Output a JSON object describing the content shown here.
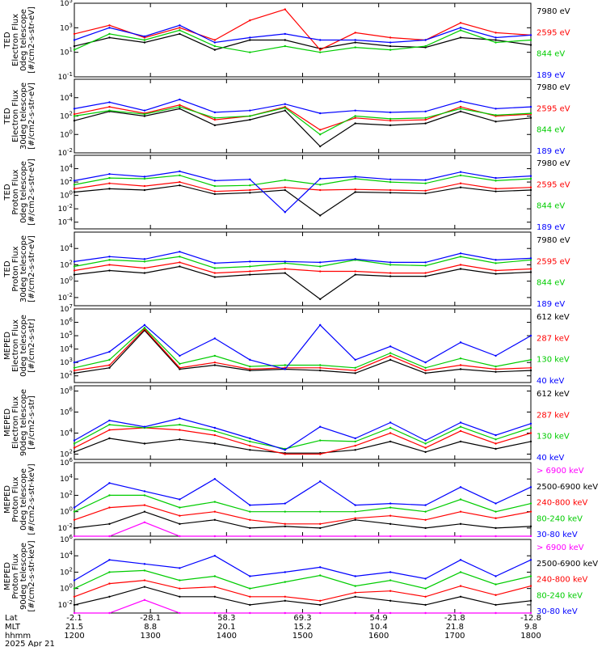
{
  "chart_data": {
    "type": "line",
    "date": "2025 Apr 21",
    "xaxis": {
      "row_labels": [
        "Lat",
        "MLT",
        "hhmm"
      ],
      "times": [
        "1200",
        "1300",
        "1400",
        "1500",
        "1600",
        "1700",
        "1800"
      ],
      "lat": [
        "-2.1",
        "-28.1",
        "58.3",
        "69.3",
        "54.9",
        "-21.8",
        "-12.8"
      ],
      "mlt": [
        "21.5",
        "8.8",
        "20.1",
        "15.2",
        "10.4",
        "21.8",
        "9.8"
      ]
    },
    "panels": [
      {
        "ylabel": [
          "TED",
          "Electron Flux",
          "0deg telescope",
          "[#/cm2-s-str-eV]"
        ],
        "yticks": [
          "10^-1",
          "10^1",
          "10^3",
          "10^5"
        ],
        "ylim_log10": [
          -1,
          5
        ],
        "series": [
          {
            "name": "7980 eV",
            "color": "#000000",
            "values": [
              1.5,
              2.2,
              1.8,
              2.5,
              1.2,
              2.0,
              2.0,
              1.3,
              1.8,
              1.5,
              1.4,
              2.2,
              2.0,
              1.6
            ]
          },
          {
            "name": "2595 eV",
            "color": "#ff0000",
            "values": [
              2.5,
              3.2,
              2.2,
              3.0,
              2.0,
              3.6,
              4.5,
              1.2,
              2.6,
              2.2,
              2.0,
              3.4,
              2.6,
              2.4
            ]
          },
          {
            "name": "844 eV",
            "color": "#00cc00",
            "values": [
              1.2,
              2.5,
              2.0,
              2.8,
              1.5,
              1.0,
              1.5,
              1.0,
              1.4,
              1.2,
              1.5,
              2.8,
              1.8,
              2.0
            ]
          },
          {
            "name": "189 eV",
            "color": "#0000ff",
            "values": [
              2.0,
              3.0,
              2.3,
              3.2,
              1.8,
              2.2,
              2.5,
              2.0,
              2.0,
              1.8,
              2.0,
              3.0,
              2.2,
              2.4
            ]
          }
        ]
      },
      {
        "ylabel": [
          "TED",
          "Electron Flux",
          "30deg telescope",
          "[#/cm2-s-str-eV]"
        ],
        "yticks": [
          "10^-2",
          "10^0",
          "10^2",
          "10^4"
        ],
        "ylim_log10": [
          -2,
          6
        ],
        "series": [
          {
            "name": "7980 eV",
            "color": "#000000",
            "values": [
              1.5,
              2.5,
              2.0,
              2.8,
              1.0,
              1.6,
              2.6,
              -1.3,
              1.2,
              1.0,
              1.2,
              2.5,
              1.4,
              1.8
            ]
          },
          {
            "name": "2595 eV",
            "color": "#ff0000",
            "values": [
              2.2,
              3.0,
              2.3,
              3.2,
              1.6,
              2.0,
              3.0,
              0.5,
              1.8,
              1.5,
              1.6,
              3.0,
              2.0,
              2.2
            ]
          },
          {
            "name": "844 eV",
            "color": "#00cc00",
            "values": [
              2.0,
              2.6,
              2.2,
              3.0,
              1.8,
              2.0,
              2.9,
              0.0,
              2.0,
              1.7,
              1.8,
              2.8,
              2.1,
              2.3
            ]
          },
          {
            "name": "189 eV",
            "color": "#0000ff",
            "values": [
              2.8,
              3.5,
              2.6,
              3.8,
              2.4,
              2.6,
              3.3,
              2.3,
              2.6,
              2.4,
              2.5,
              3.6,
              2.8,
              3.0
            ]
          }
        ]
      },
      {
        "ylabel": [
          "TED",
          "Proton Flux",
          "0deg telescope",
          "[#/cm2-s-str-eV]"
        ],
        "yticks": [
          "10^-4",
          "10^-2",
          "10^0",
          "10^2",
          "10^4"
        ],
        "ylim_log10": [
          -5,
          6
        ],
        "series": [
          {
            "name": "7980 eV",
            "color": "#000000",
            "values": [
              0.5,
              1.0,
              0.8,
              1.5,
              0.2,
              0.4,
              0.8,
              -3.0,
              0.5,
              0.4,
              0.3,
              1.2,
              0.6,
              0.8
            ]
          },
          {
            "name": "2595 eV",
            "color": "#ff0000",
            "values": [
              1.0,
              1.8,
              1.4,
              2.0,
              0.6,
              0.8,
              1.2,
              0.8,
              0.9,
              0.8,
              0.7,
              1.8,
              1.0,
              1.2
            ]
          },
          {
            "name": "844 eV",
            "color": "#00cc00",
            "values": [
              1.6,
              2.6,
              2.5,
              3.0,
              1.4,
              1.5,
              2.3,
              1.6,
              2.5,
              2.0,
              1.8,
              3.0,
              2.2,
              2.5
            ]
          },
          {
            "name": "189 eV",
            "color": "#0000ff",
            "values": [
              2.2,
              3.2,
              2.8,
              3.6,
              2.2,
              2.4,
              -2.5,
              2.5,
              2.8,
              2.4,
              2.3,
              3.5,
              2.6,
              2.9
            ]
          }
        ]
      },
      {
        "ylabel": [
          "TED",
          "Proton Flux",
          "30deg telescope",
          "[#/cm2-s-str-eV]"
        ],
        "yticks": [
          "10^-2",
          "10^0",
          "10^2",
          "10^4"
        ],
        "ylim_log10": [
          -3,
          6
        ],
        "series": [
          {
            "name": "7980 eV",
            "color": "#000000",
            "values": [
              0.8,
              1.3,
              1.0,
              1.8,
              0.5,
              0.8,
              1.0,
              -2.2,
              0.8,
              0.6,
              0.6,
              1.5,
              0.9,
              1.1
            ]
          },
          {
            "name": "2595 eV",
            "color": "#ff0000",
            "values": [
              1.3,
              2.0,
              1.6,
              2.3,
              1.0,
              1.2,
              1.5,
              1.2,
              1.2,
              1.0,
              1.0,
              2.0,
              1.3,
              1.5
            ]
          },
          {
            "name": "844 eV",
            "color": "#00cc00",
            "values": [
              1.8,
              2.6,
              2.4,
              3.0,
              1.6,
              1.8,
              2.2,
              1.8,
              2.6,
              2.0,
              1.9,
              3.0,
              2.2,
              2.6
            ]
          },
          {
            "name": "189 eV",
            "color": "#0000ff",
            "values": [
              2.4,
              3.0,
              2.7,
              3.6,
              2.2,
              2.4,
              2.4,
              2.3,
              2.7,
              2.3,
              2.3,
              3.4,
              2.6,
              2.8
            ]
          }
        ]
      },
      {
        "ylabel": [
          "MEPED",
          "Electron Flux",
          "0deg telescope",
          "[#/cm2-s-str]"
        ],
        "yticks": [
          "10^2",
          "10^3",
          "10^4",
          "10^5",
          "10^6",
          "10^7"
        ],
        "ylim_log10": [
          1.5,
          7
        ],
        "series": [
          {
            "name": "612 keV",
            "color": "#000000",
            "values": [
              2.2,
              2.6,
              5.4,
              2.5,
              2.8,
              2.4,
              2.5,
              2.4,
              2.2,
              3.2,
              2.2,
              2.5,
              2.3,
              2.4
            ]
          },
          {
            "name": "287 keV",
            "color": "#ff0000",
            "values": [
              2.4,
              2.8,
              5.5,
              2.6,
              3.0,
              2.5,
              2.6,
              2.6,
              2.4,
              3.5,
              2.4,
              2.8,
              2.5,
              2.6
            ]
          },
          {
            "name": "130 keV",
            "color": "#00cc00",
            "values": [
              2.6,
              3.2,
              5.6,
              2.9,
              3.5,
              2.7,
              2.8,
              2.8,
              2.6,
              3.7,
              2.6,
              3.3,
              2.7,
              3.2
            ]
          },
          {
            "name": "40 keV",
            "color": "#0000ff",
            "values": [
              3.0,
              3.8,
              5.8,
              3.5,
              4.8,
              3.2,
              2.5,
              5.8,
              3.2,
              4.2,
              3.0,
              4.5,
              3.5,
              5.0
            ]
          }
        ]
      },
      {
        "ylabel": [
          "MEPED",
          "Electron Flux",
          "90deg telescope",
          "[#/cm2-s-str]"
        ],
        "yticks": [
          "10^2",
          "10^4",
          "10^6",
          "10^8"
        ],
        "ylim_log10": [
          1.5,
          8.5
        ],
        "series": [
          {
            "name": "612 keV",
            "color": "#000000",
            "values": [
              2.2,
              3.5,
              3.0,
              3.4,
              3.0,
              2.4,
              2.1,
              2.1,
              2.4,
              3.2,
              2.2,
              3.2,
              2.5,
              3.2
            ]
          },
          {
            "name": "287 keV",
            "color": "#ff0000",
            "values": [
              2.6,
              4.3,
              4.5,
              4.3,
              3.8,
              2.8,
              2.0,
              2.0,
              2.8,
              4.0,
              2.6,
              4.2,
              3.0,
              4.0
            ]
          },
          {
            "name": "130 keV",
            "color": "#00cc00",
            "values": [
              3.0,
              4.8,
              4.5,
              4.8,
              4.2,
              3.2,
              2.5,
              3.3,
              3.2,
              4.5,
              3.0,
              4.6,
              3.4,
              4.5
            ]
          },
          {
            "name": "40 keV",
            "color": "#0000ff",
            "values": [
              3.3,
              5.2,
              4.6,
              5.4,
              4.5,
              3.5,
              2.4,
              4.6,
              3.5,
              5.0,
              3.3,
              5.0,
              3.8,
              4.9
            ]
          }
        ]
      },
      {
        "ylabel": [
          "MEPED",
          "Proton Flux",
          "0deg telescope",
          "[#/cm2-s-str-keV]"
        ],
        "yticks": [
          "10^-2",
          "10^0",
          "10^2",
          "10^4",
          "10^6"
        ],
        "ylim_log10": [
          -3,
          6
        ],
        "series": [
          {
            "name": "> 6900 keV",
            "color": "#ff00ff",
            "values": [
              -3,
              -3,
              -1.3,
              -3,
              -3,
              -3,
              -3,
              -3,
              -3,
              -3,
              -3,
              -3,
              -3,
              -3
            ]
          },
          {
            "name": "2500-6900 keV",
            "color": "#000000",
            "values": [
              -2.0,
              -1.5,
              0.0,
              -1.5,
              -1.0,
              -2.0,
              -1.8,
              -2.0,
              -1.0,
              -1.5,
              -2.0,
              -1.5,
              -2.0,
              -1.8
            ]
          },
          {
            "name": "240-800 keV",
            "color": "#ff0000",
            "values": [
              -1.0,
              0.5,
              0.8,
              -0.5,
              0.0,
              -1.0,
              -1.5,
              -1.5,
              -0.8,
              -0.5,
              -1.0,
              0.0,
              -0.8,
              0.0
            ]
          },
          {
            "name": "80-240 keV",
            "color": "#00cc00",
            "values": [
              0.0,
              2.0,
              2.0,
              0.5,
              1.2,
              0.0,
              0.0,
              0.0,
              0.0,
              0.5,
              0.0,
              1.5,
              0.0,
              1.0
            ]
          },
          {
            "name": "30-80 keV",
            "color": "#0000ff",
            "values": [
              0.5,
              3.5,
              2.5,
              1.5,
              4.0,
              0.8,
              1.0,
              3.7,
              0.8,
              1.0,
              0.8,
              3.0,
              1.0,
              3.0
            ]
          }
        ]
      },
      {
        "ylabel": [
          "MEPED",
          "Proton Flux",
          "90deg telescope",
          "[#/cm2-s-str-keV]"
        ],
        "yticks": [
          "10^-2",
          "10^0",
          "10^2",
          "10^4",
          "10^6"
        ],
        "ylim_log10": [
          -3,
          6
        ],
        "series": [
          {
            "name": "> 6900 keV",
            "color": "#ff00ff",
            "values": [
              -3,
              -3,
              -1.4,
              -3,
              -3,
              -3,
              -3,
              -3,
              -3,
              -3,
              -3,
              -3,
              -3,
              -3
            ]
          },
          {
            "name": "2500-6900 keV",
            "color": "#000000",
            "values": [
              -2.0,
              -1.0,
              0.2,
              -1.0,
              -1.0,
              -2.0,
              -1.5,
              -2.0,
              -1.0,
              -1.5,
              -2.0,
              -1.0,
              -2.0,
              -1.5
            ]
          },
          {
            "name": "240-800 keV",
            "color": "#ff0000",
            "values": [
              -1.0,
              0.6,
              1.0,
              0.0,
              0.2,
              -1.0,
              -1.0,
              -1.5,
              -0.5,
              -0.3,
              -1.0,
              0.3,
              -0.8,
              0.3
            ]
          },
          {
            "name": "80-240 keV",
            "color": "#00cc00",
            "values": [
              0.0,
              2.0,
              2.2,
              1.0,
              1.5,
              0.0,
              0.8,
              1.6,
              0.3,
              1.0,
              0.0,
              2.0,
              0.5,
              1.5
            ]
          },
          {
            "name": "30-80 keV",
            "color": "#0000ff",
            "values": [
              1.0,
              3.5,
              3.0,
              2.5,
              4.0,
              1.5,
              2.0,
              2.6,
              1.5,
              2.0,
              1.2,
              3.5,
              1.5,
              3.5
            ]
          }
        ]
      }
    ]
  }
}
